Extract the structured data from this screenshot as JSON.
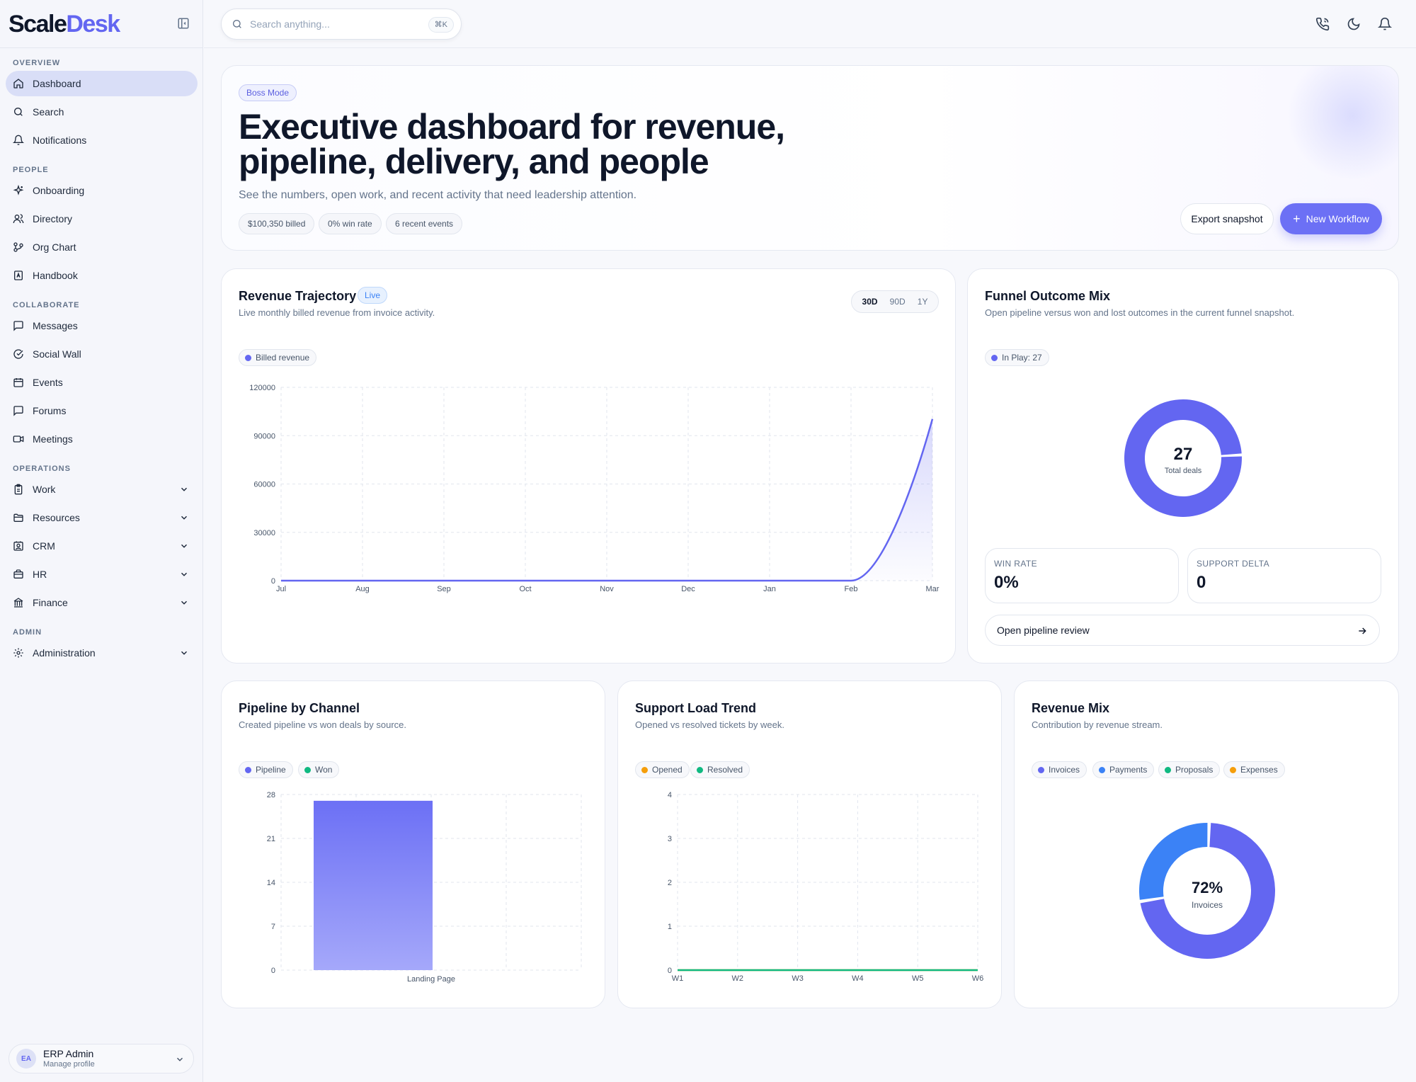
{
  "brand": {
    "part1": "Scale",
    "part2": "Desk"
  },
  "sidebar": {
    "sections": [
      {
        "title": "OVERVIEW",
        "items": [
          {
            "label": "Dashboard",
            "icon": "home-icon",
            "active": true
          },
          {
            "label": "Search",
            "icon": "search-icon"
          },
          {
            "label": "Notifications",
            "icon": "bell-icon"
          }
        ]
      },
      {
        "title": "PEOPLE",
        "items": [
          {
            "label": "Onboarding",
            "icon": "sparkles-icon"
          },
          {
            "label": "Directory",
            "icon": "users-icon"
          },
          {
            "label": "Org Chart",
            "icon": "git-branch-icon"
          },
          {
            "label": "Handbook",
            "icon": "book-icon"
          }
        ]
      },
      {
        "title": "COLLABORATE",
        "items": [
          {
            "label": "Messages",
            "icon": "message-square-icon"
          },
          {
            "label": "Social Wall",
            "icon": "social-icon"
          },
          {
            "label": "Events",
            "icon": "calendar-icon"
          },
          {
            "label": "Forums",
            "icon": "message-square-icon"
          },
          {
            "label": "Meetings",
            "icon": "video-icon"
          }
        ]
      },
      {
        "title": "OPERATIONS",
        "items": [
          {
            "label": "Work",
            "icon": "clipboard-icon",
            "expandable": true
          },
          {
            "label": "Resources",
            "icon": "folder-icon",
            "expandable": true
          },
          {
            "label": "CRM",
            "icon": "contact-icon",
            "expandable": true
          },
          {
            "label": "HR",
            "icon": "briefcase-icon",
            "expandable": true
          },
          {
            "label": "Finance",
            "icon": "bank-icon",
            "expandable": true
          }
        ]
      },
      {
        "title": "ADMIN",
        "items": [
          {
            "label": "Administration",
            "icon": "gear-icon",
            "expandable": true
          }
        ]
      }
    ],
    "profile": {
      "initials": "EA",
      "name": "ERP Admin",
      "subtitle": "Manage profile"
    }
  },
  "topbar": {
    "search_placeholder": "Search anything...",
    "shortcut": "⌘K",
    "icons": [
      "phone-icon",
      "moon-icon",
      "bell-icon"
    ]
  },
  "hero": {
    "badge": "Boss Mode",
    "title": "Executive dashboard for revenue, pipeline, delivery, and people",
    "subtitle": "See the numbers, open work, and recent activity that need leadership attention.",
    "chips": [
      "$100,350 billed",
      "0% win rate",
      "6 recent events"
    ],
    "export_label": "Export snapshot",
    "new_label": "New Workflow"
  },
  "colors": {
    "accent": "#6366f1",
    "won": "#10b981",
    "opened": "#f59e0b",
    "payments": "#3b82f6",
    "proposals": "#10b981",
    "expenses": "#f59e0b"
  },
  "revenue_card": {
    "title": "Revenue Trajectory",
    "live": "Live",
    "subtitle": "Live monthly billed revenue from invoice activity.",
    "ranges": [
      "30D",
      "90D",
      "1Y"
    ],
    "selected_range": "30D",
    "legend": "Billed revenue"
  },
  "funnel_card": {
    "title": "Funnel Outcome Mix",
    "subtitle": "Open pipeline versus won and lost outcomes in the current funnel snapshot.",
    "legend": "In Play: 27",
    "center_value": "27",
    "center_label": "Total deals",
    "stats": [
      {
        "label": "WIN RATE",
        "value": "0%"
      },
      {
        "label": "SUPPORT DELTA",
        "value": "0"
      }
    ],
    "link_label": "Open pipeline review"
  },
  "pipeline_card": {
    "title": "Pipeline by Channel",
    "subtitle": "Created pipeline vs won deals by source.",
    "legend": [
      "Pipeline",
      "Won"
    ]
  },
  "support_card": {
    "title": "Support Load Trend",
    "subtitle": "Opened vs resolved tickets by week.",
    "legend": [
      "Opened",
      "Resolved"
    ]
  },
  "mix_card": {
    "title": "Revenue Mix",
    "subtitle": "Contribution by revenue stream.",
    "legend": [
      "Invoices",
      "Payments",
      "Proposals",
      "Expenses"
    ],
    "center_value": "72%",
    "center_label": "Invoices"
  },
  "chart_data": [
    {
      "type": "area",
      "title": "Revenue Trajectory",
      "x": [
        "Jul",
        "Aug",
        "Sep",
        "Oct",
        "Nov",
        "Dec",
        "Jan",
        "Feb",
        "Mar"
      ],
      "series": [
        {
          "name": "Billed revenue",
          "values": [
            0,
            0,
            0,
            0,
            0,
            0,
            0,
            0,
            100350
          ]
        }
      ],
      "ylim": [
        0,
        120000
      ],
      "yticks": [
        0,
        30000,
        60000,
        90000,
        120000
      ],
      "grid": true,
      "legend": "top-left"
    },
    {
      "type": "pie",
      "title": "Funnel Outcome Mix",
      "categories": [
        "In Play"
      ],
      "values": [
        27
      ],
      "legend": "top-left"
    },
    {
      "type": "bar",
      "title": "Pipeline by Channel",
      "categories": [
        "Landing Page"
      ],
      "series": [
        {
          "name": "Pipeline",
          "values": [
            27
          ]
        },
        {
          "name": "Won",
          "values": [
            0
          ]
        }
      ],
      "ylim": [
        0,
        28
      ],
      "yticks": [
        0,
        7,
        14,
        21,
        28
      ],
      "grid": true,
      "legend": "top-left"
    },
    {
      "type": "line",
      "title": "Support Load Trend",
      "x": [
        "W1",
        "W2",
        "W3",
        "W4",
        "W5",
        "W6"
      ],
      "series": [
        {
          "name": "Opened",
          "values": [
            0,
            0,
            0,
            0,
            0,
            0
          ]
        },
        {
          "name": "Resolved",
          "values": [
            0,
            0,
            0,
            0,
            0,
            0
          ]
        }
      ],
      "ylim": [
        0,
        4
      ],
      "yticks": [
        0,
        1,
        2,
        3,
        4
      ],
      "grid": true,
      "legend": "top-left"
    },
    {
      "type": "pie",
      "title": "Revenue Mix",
      "categories": [
        "Invoices",
        "Payments",
        "Proposals",
        "Expenses"
      ],
      "values": [
        72,
        28,
        0,
        0
      ],
      "legend": "top-left"
    }
  ]
}
